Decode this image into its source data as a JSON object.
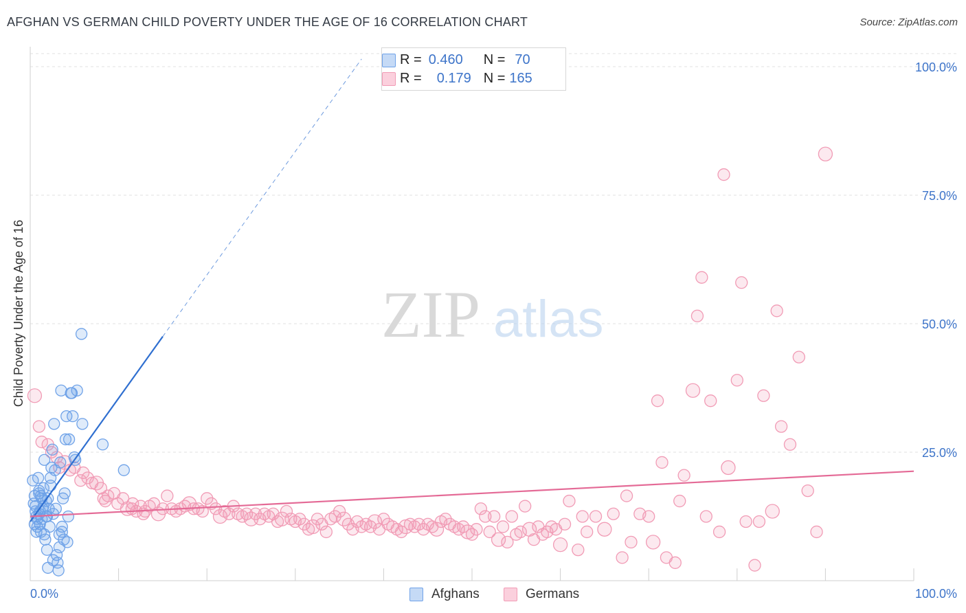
{
  "header": {
    "title": "AFGHAN VS GERMAN CHILD POVERTY UNDER THE AGE OF 16 CORRELATION CHART",
    "source": "Source: ZipAtlas.com"
  },
  "watermark": {
    "zip": "ZIP",
    "atlas": "atlas"
  },
  "legend": {
    "rows": [
      {
        "r_label": "R =",
        "r_value": "0.460",
        "n_label": "N =",
        "n_value": "70",
        "color": "#6fa2e8"
      },
      {
        "r_label": "R =",
        "r_value": "0.179",
        "n_label": "N =",
        "n_value": "165",
        "color": "#f19bb5"
      }
    ]
  },
  "bottom_legend": [
    {
      "label": "Afghans",
      "color": "#6fa2e8"
    },
    {
      "label": "Germans",
      "color": "#f19bb5"
    }
  ],
  "chart_data": {
    "type": "scatter",
    "title": "AFGHAN VS GERMAN CHILD POVERTY UNDER THE AGE OF 16 CORRELATION CHART",
    "xlabel": "",
    "ylabel": "Child Poverty Under the Age of 16",
    "xlim": [
      0,
      100
    ],
    "ylim": [
      0,
      100
    ],
    "x_tick_labels": [
      "0.0%",
      "100.0%"
    ],
    "y_tick_labels": [
      "25.0%",
      "50.0%",
      "75.0%",
      "100.0%"
    ],
    "y_ticks": [
      25,
      50,
      75,
      100
    ],
    "series": [
      {
        "name": "Afghans",
        "color": "#6fa2e8",
        "line_color": "#2f6fd0",
        "R": 0.46,
        "N": 70,
        "trend": {
          "x0": 0,
          "y0": 11.5,
          "x1": 15,
          "y1": 47.5,
          "extend_to_x": 37.5
        },
        "points": [
          [
            0.3,
            19.5
          ],
          [
            0.5,
            16.5
          ],
          [
            0.6,
            14.5
          ],
          [
            0.7,
            12.5
          ],
          [
            0.8,
            10.5
          ],
          [
            0.9,
            20
          ],
          [
            1,
            17
          ],
          [
            1,
            13
          ],
          [
            1.1,
            11
          ],
          [
            1.2,
            9.5
          ],
          [
            1.3,
            16
          ],
          [
            1.4,
            14
          ],
          [
            1.5,
            18
          ],
          [
            1.6,
            23.5
          ],
          [
            1.7,
            8
          ],
          [
            1.8,
            12.5
          ],
          [
            1.9,
            6
          ],
          [
            2,
            2.5
          ],
          [
            2,
            16
          ],
          [
            2.2,
            10.5
          ],
          [
            2.3,
            20
          ],
          [
            2.4,
            22
          ],
          [
            2.5,
            25.5
          ],
          [
            2.6,
            13
          ],
          [
            2.7,
            30.5
          ],
          [
            2.8,
            21.5
          ],
          [
            2.9,
            14
          ],
          [
            3,
            5
          ],
          [
            3.1,
            3.5
          ],
          [
            3.2,
            2
          ],
          [
            3.3,
            9
          ],
          [
            3.4,
            23
          ],
          [
            3.5,
            37
          ],
          [
            3.6,
            10.5
          ],
          [
            3.7,
            16
          ],
          [
            3.8,
            8
          ],
          [
            3.9,
            17
          ],
          [
            4,
            27.5
          ],
          [
            4.1,
            32
          ],
          [
            4.2,
            7.5
          ],
          [
            4.3,
            12.5
          ],
          [
            4.4,
            27.5
          ],
          [
            4.6,
            36.5
          ],
          [
            4.7,
            36.5
          ],
          [
            4.8,
            32
          ],
          [
            5,
            24
          ],
          [
            5.1,
            23.5
          ],
          [
            5.3,
            37
          ],
          [
            5.8,
            48
          ],
          [
            5.9,
            30.5
          ],
          [
            8.2,
            26.5
          ],
          [
            10.6,
            21.5
          ],
          [
            0.4,
            15
          ],
          [
            0.6,
            13.5
          ],
          [
            1,
            17.5
          ],
          [
            1.3,
            12
          ],
          [
            1.6,
            9
          ],
          [
            1.8,
            15.5
          ],
          [
            2.1,
            14
          ],
          [
            2.3,
            18.5
          ],
          [
            0.5,
            11
          ],
          [
            0.8,
            12
          ],
          [
            1.1,
            13.5
          ],
          [
            1.5,
            14.5
          ],
          [
            2.6,
            4
          ],
          [
            3.3,
            6.5
          ],
          [
            3.6,
            9.5
          ],
          [
            0.7,
            9.5
          ],
          [
            1.2,
            16.5
          ],
          [
            1.9,
            12.5
          ]
        ]
      },
      {
        "name": "Germans",
        "color": "#f19bb5",
        "line_color": "#e46a96",
        "R": 0.179,
        "N": 165,
        "trend": {
          "x0": 0,
          "y0": 12.5,
          "x1": 100,
          "y1": 21.3
        },
        "points": [
          [
            0.5,
            36
          ],
          [
            1,
            30
          ],
          [
            1.3,
            27
          ],
          [
            2,
            26.5
          ],
          [
            2.4,
            25
          ],
          [
            3,
            24
          ],
          [
            3.3,
            22
          ],
          [
            3.9,
            23
          ],
          [
            4.5,
            21.5
          ],
          [
            5,
            22
          ],
          [
            5.7,
            19.5
          ],
          [
            6,
            21
          ],
          [
            6.5,
            20
          ],
          [
            7,
            19
          ],
          [
            7.5,
            19
          ],
          [
            8,
            18
          ],
          [
            8.3,
            16
          ],
          [
            8.8,
            16.5
          ],
          [
            9.5,
            17
          ],
          [
            9.9,
            15
          ],
          [
            10.5,
            16
          ],
          [
            11,
            14
          ],
          [
            11.6,
            15
          ],
          [
            12,
            13.5
          ],
          [
            12.5,
            14.5
          ],
          [
            13,
            13.5
          ],
          [
            13.5,
            14.5
          ],
          [
            14,
            15
          ],
          [
            14.5,
            13
          ],
          [
            15,
            14
          ],
          [
            15.5,
            16.5
          ],
          [
            16,
            14
          ],
          [
            16.5,
            13.5
          ],
          [
            17,
            14
          ],
          [
            17.5,
            14.5
          ],
          [
            18,
            15
          ],
          [
            18.5,
            14
          ],
          [
            19,
            14
          ],
          [
            19.5,
            13.5
          ],
          [
            20,
            16
          ],
          [
            20.5,
            15
          ],
          [
            21,
            14
          ],
          [
            21.5,
            12.5
          ],
          [
            22,
            13.5
          ],
          [
            22.5,
            13
          ],
          [
            23,
            14.5
          ],
          [
            23.5,
            13
          ],
          [
            24,
            12.5
          ],
          [
            24.5,
            13
          ],
          [
            25,
            12
          ],
          [
            25.5,
            13
          ],
          [
            26,
            12
          ],
          [
            26.5,
            13
          ],
          [
            27,
            12.5
          ],
          [
            27.5,
            13
          ],
          [
            28,
            11.5
          ],
          [
            28.5,
            12
          ],
          [
            29,
            13.5
          ],
          [
            29.5,
            12
          ],
          [
            30,
            11.5
          ],
          [
            30.5,
            12
          ],
          [
            31,
            11
          ],
          [
            31.5,
            10
          ],
          [
            32,
            10.5
          ],
          [
            32.5,
            12
          ],
          [
            33,
            11
          ],
          [
            33.5,
            9.5
          ],
          [
            34,
            12
          ],
          [
            34.5,
            12.5
          ],
          [
            35,
            13.5
          ],
          [
            35.5,
            12
          ],
          [
            36,
            11
          ],
          [
            36.5,
            10
          ],
          [
            37,
            11.5
          ],
          [
            37.5,
            10.5
          ],
          [
            38,
            11
          ],
          [
            38.5,
            10.5
          ],
          [
            39,
            11.5
          ],
          [
            39.5,
            10
          ],
          [
            40,
            12
          ],
          [
            40.5,
            11
          ],
          [
            41,
            10.5
          ],
          [
            41.5,
            10
          ],
          [
            42,
            9.5
          ],
          [
            42.5,
            10.5
          ],
          [
            43,
            11
          ],
          [
            43.5,
            10.5
          ],
          [
            44,
            11
          ],
          [
            44.5,
            10
          ],
          [
            45,
            11
          ],
          [
            45.5,
            10.5
          ],
          [
            46,
            10
          ],
          [
            46.5,
            11.5
          ],
          [
            47,
            12
          ],
          [
            47.5,
            11
          ],
          [
            48,
            10.5
          ],
          [
            48.5,
            10
          ],
          [
            49,
            10.5
          ],
          [
            49.5,
            9.5
          ],
          [
            50,
            9
          ],
          [
            50.5,
            10
          ],
          [
            51,
            14
          ],
          [
            51.5,
            12.5
          ],
          [
            52,
            9.5
          ],
          [
            52.5,
            12.5
          ],
          [
            53,
            8
          ],
          [
            53.5,
            10.5
          ],
          [
            54,
            7.5
          ],
          [
            54.5,
            12.5
          ],
          [
            55,
            9
          ],
          [
            55.5,
            9.5
          ],
          [
            56,
            14.5
          ],
          [
            56.5,
            10
          ],
          [
            57,
            8
          ],
          [
            57.5,
            10.5
          ],
          [
            58,
            9
          ],
          [
            58.5,
            9.5
          ],
          [
            59,
            10.5
          ],
          [
            59.5,
            10
          ],
          [
            60,
            7
          ],
          [
            60.5,
            11
          ],
          [
            61,
            15.5
          ],
          [
            62,
            6
          ],
          [
            62.5,
            12.5
          ],
          [
            63,
            9.5
          ],
          [
            64,
            12.5
          ],
          [
            65,
            10
          ],
          [
            66,
            13
          ],
          [
            67,
            4.5
          ],
          [
            67.5,
            16.5
          ],
          [
            68,
            7.5
          ],
          [
            69,
            13
          ],
          [
            70,
            12.5
          ],
          [
            70.5,
            7.5
          ],
          [
            71,
            35
          ],
          [
            71.5,
            23
          ],
          [
            72,
            4.5
          ],
          [
            73,
            3.5
          ],
          [
            73.5,
            15.5
          ],
          [
            74,
            20.5
          ],
          [
            75,
            37
          ],
          [
            75.5,
            51.5
          ],
          [
            76,
            59
          ],
          [
            76.5,
            12.5
          ],
          [
            77,
            35
          ],
          [
            78,
            9.5
          ],
          [
            78.5,
            79
          ],
          [
            79,
            22
          ],
          [
            80,
            39
          ],
          [
            80.5,
            58
          ],
          [
            81,
            11.5
          ],
          [
            82,
            3
          ],
          [
            82.5,
            11.5
          ],
          [
            83,
            36
          ],
          [
            84,
            13.5
          ],
          [
            84.5,
            52.5
          ],
          [
            85,
            30
          ],
          [
            86,
            26.5
          ],
          [
            87,
            43.5
          ],
          [
            88,
            17.5
          ],
          [
            89,
            9.5
          ],
          [
            90,
            83
          ],
          [
            8.5,
            15.5
          ],
          [
            11.5,
            14
          ],
          [
            12.8,
            13
          ]
        ]
      }
    ]
  }
}
